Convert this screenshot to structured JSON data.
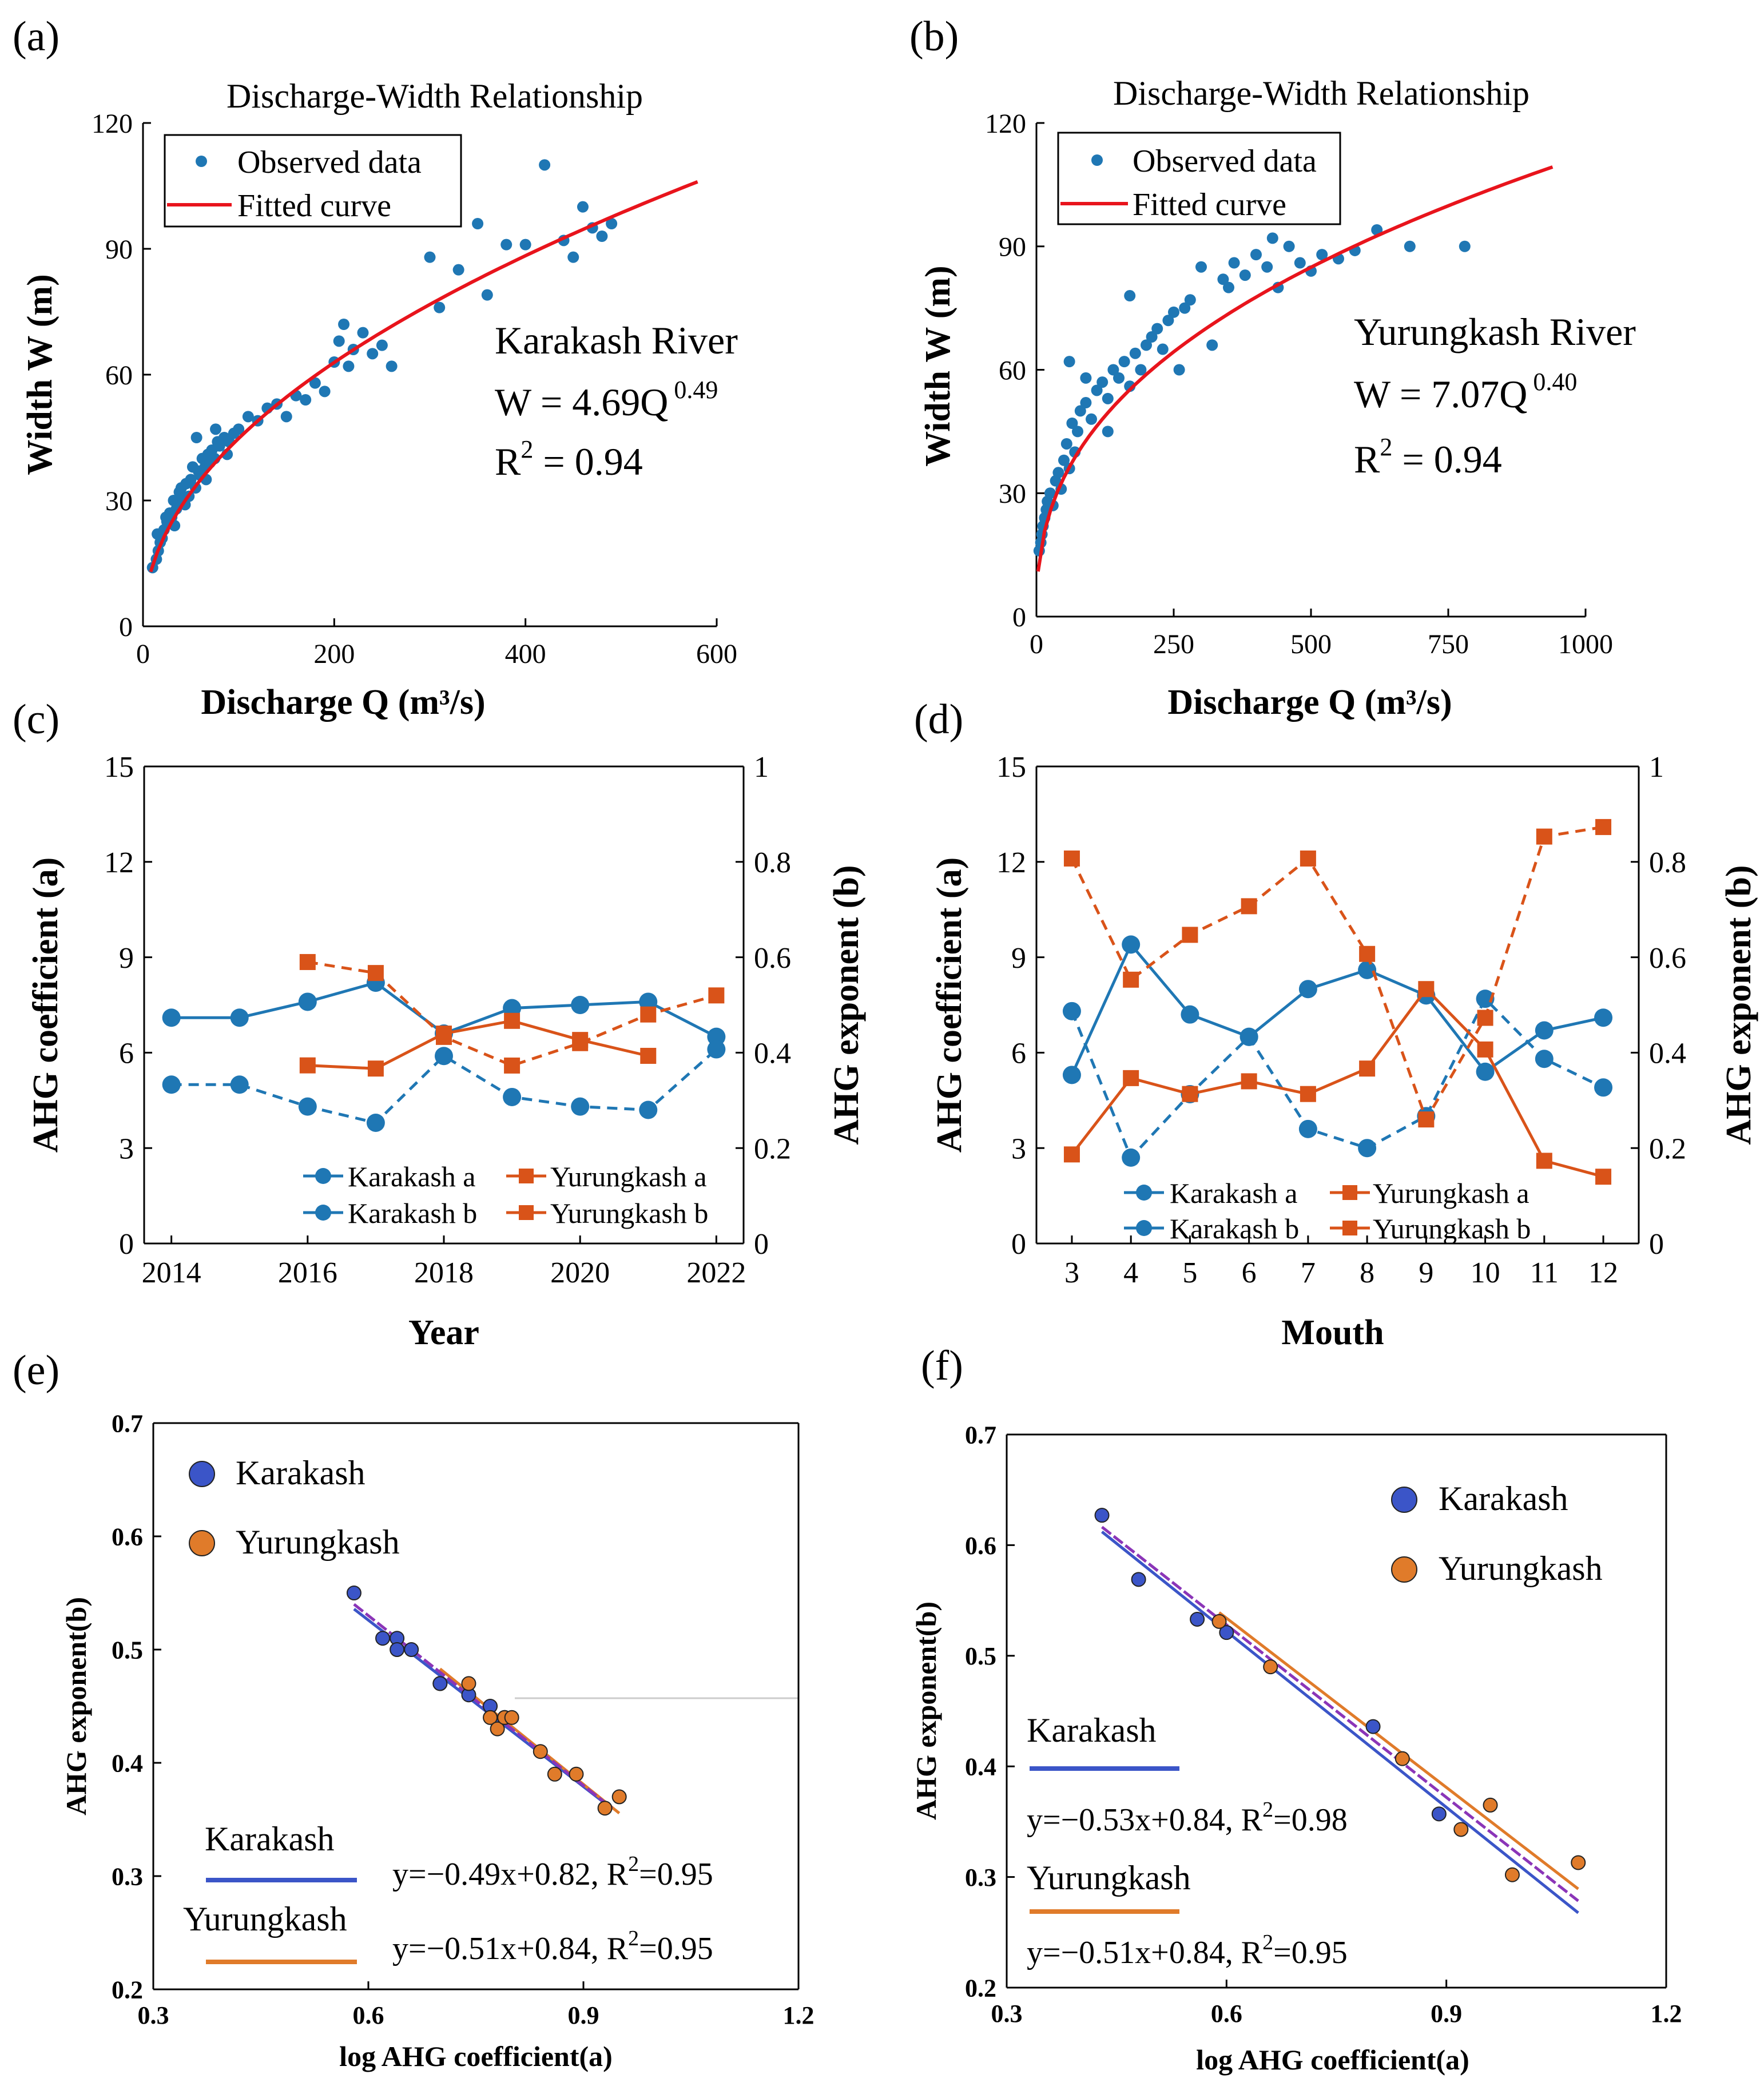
{
  "colors": {
    "kar": "#1f77b4",
    "yur": "#d95319",
    "red": "#e8141c",
    "kar_e": "#3b55c8",
    "yur_e": "#e07b2a",
    "purple": "#8b35b8",
    "axis": "#000000"
  },
  "chart_data": [
    {
      "id": "a",
      "type": "scatter",
      "panel_label": "(a)",
      "title": "Discharge-Width Relationship",
      "xlabel": "Discharge Q (m³/s)",
      "ylabel": "Width W (m)",
      "xlim": [
        0,
        600
      ],
      "ylim": [
        0,
        120
      ],
      "xticks": [
        0,
        200,
        400,
        600
      ],
      "yticks": [
        0,
        30,
        60,
        90,
        120
      ],
      "legend": [
        "Observed data",
        "Fitted curve"
      ],
      "annotations": [
        "Karakash River",
        "W = 4.69Q",
        "0.49",
        "R",
        "2",
        " = 0.94"
      ],
      "fit": {
        "coef": 4.69,
        "exp": 0.49,
        "r2": 0.94,
        "x_range": [
          8,
          580
        ]
      },
      "series": [
        {
          "name": "Observed data",
          "x": [
            10,
            14,
            16,
            18,
            20,
            22,
            25,
            28,
            30,
            32,
            35,
            38,
            40,
            42,
            45,
            48,
            50,
            52,
            55,
            58,
            60,
            62,
            65,
            68,
            70,
            72,
            75,
            78,
            80,
            85,
            90,
            95,
            100,
            110,
            120,
            130,
            140,
            150,
            160,
            170,
            180,
            190,
            200,
            205,
            210,
            215,
            220,
            230,
            240,
            250,
            260,
            300,
            310,
            330,
            350,
            360,
            380,
            400,
            420,
            440,
            450,
            460,
            470,
            480,
            490,
            15,
            24,
            33,
            44,
            56,
            66,
            76,
            88
          ],
          "y": [
            14,
            16,
            18,
            20,
            21,
            23,
            25,
            27,
            26,
            30,
            28,
            32,
            33,
            30,
            34,
            31,
            35,
            38,
            33,
            37,
            36,
            40,
            38,
            41,
            39,
            42,
            40,
            44,
            43,
            45,
            44,
            46,
            47,
            50,
            49,
            52,
            53,
            50,
            55,
            54,
            58,
            56,
            63,
            68,
            72,
            62,
            66,
            70,
            65,
            67,
            62,
            88,
            76,
            85,
            96,
            79,
            91,
            91,
            110,
            92,
            88,
            100,
            95,
            93,
            96,
            22,
            26,
            24,
            29,
            45,
            35,
            47,
            41
          ]
        }
      ]
    },
    {
      "id": "b",
      "type": "scatter",
      "panel_label": "(b)",
      "title": "Discharge-Width Relationship",
      "xlabel": "Discharge Q (m³/s)",
      "ylabel": "Width W (m)",
      "xlim": [
        0,
        1000
      ],
      "ylim": [
        0,
        120
      ],
      "xticks": [
        0,
        250,
        500,
        750,
        1000
      ],
      "yticks": [
        0,
        30,
        60,
        90,
        120
      ],
      "legend": [
        "Observed data",
        "Fitted curve"
      ],
      "annotations": [
        "Yurungkash River",
        "W = 7.07Q",
        "0.40",
        "R",
        "2",
        " = 0.94"
      ],
      "fit": {
        "coef": 7.07,
        "exp": 0.4,
        "r2": 0.94,
        "x_range": [
          3,
          940
        ]
      },
      "series": [
        {
          "name": "Observed data",
          "x": [
            5,
            8,
            10,
            12,
            15,
            18,
            20,
            25,
            30,
            35,
            40,
            45,
            50,
            55,
            60,
            65,
            70,
            75,
            80,
            90,
            100,
            110,
            120,
            130,
            140,
            150,
            160,
            170,
            180,
            190,
            200,
            210,
            220,
            230,
            240,
            250,
            260,
            280,
            300,
            320,
            340,
            360,
            380,
            400,
            420,
            440,
            460,
            480,
            500,
            520,
            550,
            580,
            620,
            680,
            780,
            60,
            90,
            130,
            170,
            270,
            350,
            430
          ],
          "y": [
            16,
            18,
            20,
            22,
            24,
            26,
            28,
            30,
            27,
            33,
            35,
            31,
            38,
            42,
            36,
            47,
            40,
            45,
            50,
            52,
            48,
            55,
            57,
            53,
            60,
            58,
            62,
            56,
            64,
            60,
            66,
            68,
            70,
            65,
            72,
            74,
            60,
            77,
            85,
            66,
            82,
            86,
            83,
            88,
            85,
            80,
            90,
            86,
            84,
            88,
            87,
            89,
            94,
            90,
            90,
            62,
            58,
            45,
            78,
            75,
            80,
            92
          ]
        }
      ]
    },
    {
      "id": "c",
      "type": "line",
      "panel_label": "(c)",
      "xlabel": "Year",
      "ylabel": "AHG coefficient (a)",
      "y2label": "AHG exponent (b)",
      "xlim": [
        2013.6,
        2022.4
      ],
      "ylim": [
        0,
        15
      ],
      "y2lim": [
        0,
        1
      ],
      "xticks": [
        2014,
        2016,
        2018,
        2020,
        2022
      ],
      "yticks": [
        0,
        3,
        6,
        9,
        12,
        15
      ],
      "y2ticks": [
        0,
        0.2,
        0.4,
        0.6,
        0.8,
        1
      ],
      "y2ticklabels": [
        "0",
        "0.2",
        "0.4",
        "0.6",
        "0.8",
        "1"
      ],
      "legend": [
        "Karakash a",
        "Yurungkash a",
        "Karakash b",
        "Yurungkash b"
      ],
      "series": [
        {
          "name": "Karakash a",
          "x": [
            2014,
            2015,
            2016,
            2017,
            2018,
            2019,
            2020,
            2021,
            2022
          ],
          "values": [
            7.1,
            7.1,
            7.6,
            8.2,
            6.6,
            7.4,
            7.5,
            7.6,
            6.5
          ],
          "axis": "left"
        },
        {
          "name": "Karakash b",
          "x": [
            2014,
            2015,
            2016,
            2017,
            2018,
            2019,
            2020,
            2021,
            2022
          ],
          "values": [
            0.333,
            0.333,
            0.287,
            0.253,
            0.393,
            0.307,
            0.287,
            0.28,
            0.407
          ],
          "axis": "right"
        },
        {
          "name": "Yurungkash a",
          "x": [
            2016,
            2017,
            2018,
            2019,
            2020,
            2021
          ],
          "values": [
            5.6,
            5.5,
            6.6,
            7.0,
            6.4,
            5.9
          ],
          "axis": "left"
        },
        {
          "name": "Yurungkash b",
          "x": [
            2016,
            2017,
            2018,
            2019,
            2020,
            2021,
            2022
          ],
          "values": [
            0.59,
            0.567,
            0.433,
            0.373,
            0.42,
            0.48,
            0.52
          ],
          "axis": "right"
        }
      ]
    },
    {
      "id": "d",
      "type": "line",
      "panel_label": "(d)",
      "xlabel": "Mouth",
      "ylabel": "AHG coefficient (a)",
      "y2label": "AHG exponent (b)",
      "xlim": [
        2.4,
        12.6
      ],
      "ylim": [
        0,
        15
      ],
      "y2lim": [
        0,
        1
      ],
      "xticks": [
        3,
        4,
        5,
        6,
        7,
        8,
        9,
        10,
        11,
        12
      ],
      "yticks": [
        0,
        3,
        6,
        9,
        12,
        15
      ],
      "y2ticks": [
        0,
        0.2,
        0.4,
        0.6,
        0.8,
        1
      ],
      "y2ticklabels": [
        "0",
        "0.2",
        "0.4",
        "0.6",
        "0.8",
        "1"
      ],
      "legend": [
        "Karakash a",
        "Yurungkash a",
        "Karakash b",
        "Yurungkash b"
      ],
      "series": [
        {
          "name": "Karakash a",
          "x": [
            3,
            4,
            5,
            6,
            7,
            8,
            9,
            10,
            11,
            12
          ],
          "values": [
            5.3,
            9.4,
            7.2,
            6.5,
            8.0,
            8.6,
            7.8,
            5.4,
            6.7,
            7.1
          ],
          "axis": "left"
        },
        {
          "name": "Karakash b",
          "x": [
            3,
            4,
            5,
            6,
            7,
            8,
            9,
            10,
            11,
            12
          ],
          "values": [
            0.487,
            0.18,
            0.313,
            0.433,
            0.24,
            0.2,
            0.267,
            0.513,
            0.387,
            0.327
          ],
          "axis": "right"
        },
        {
          "name": "Yurungkash a",
          "x": [
            3,
            4,
            5,
            6,
            7,
            8,
            9,
            10,
            11,
            12
          ],
          "values": [
            2.8,
            5.2,
            4.7,
            5.1,
            4.7,
            5.5,
            8.0,
            6.1,
            2.6,
            2.1
          ],
          "axis": "left"
        },
        {
          "name": "Yurungkash b",
          "x": [
            3,
            4,
            5,
            6,
            7,
            8,
            9,
            10,
            11,
            12
          ],
          "values": [
            0.807,
            0.553,
            0.647,
            0.707,
            0.807,
            0.607,
            0.26,
            0.473,
            0.853,
            0.873
          ],
          "axis": "right"
        }
      ]
    },
    {
      "id": "e",
      "type": "scatter",
      "panel_label": "(e)",
      "xlabel": "log AHG coefficient(a)",
      "ylabel": "AHG exponent(b)",
      "xlim": [
        0.3,
        1.2
      ],
      "ylim": [
        0.2,
        0.7
      ],
      "xticks": [
        0.3,
        0.6,
        0.9,
        1.2
      ],
      "yticks": [
        0.2,
        0.3,
        0.4,
        0.5,
        0.6,
        0.7
      ],
      "legend": [
        "Karakash",
        "Yurungkash"
      ],
      "fit_labels": [
        "Karakash",
        "Yurungkash"
      ],
      "equations": [
        "y=−0.49x+0.82, R",
        "2",
        "=0.95",
        "y=−0.51x+0.84, R",
        "2",
        "=0.95"
      ],
      "fits": [
        {
          "name": "Karakash",
          "slope": -0.49,
          "intercept": 0.82,
          "r2": 0.95,
          "x_range": [
            0.58,
            0.94
          ]
        },
        {
          "name": "Yurungkash",
          "slope": -0.51,
          "intercept": 0.84,
          "r2": 0.95,
          "x_range": [
            0.7,
            0.95
          ]
        }
      ],
      "series": [
        {
          "name": "Karakash",
          "x": [
            0.58,
            0.62,
            0.64,
            0.64,
            0.66,
            0.7,
            0.7,
            0.74,
            0.77,
            0.79
          ],
          "y": [
            0.55,
            0.51,
            0.51,
            0.5,
            0.5,
            0.47,
            0.47,
            0.46,
            0.45,
            0.44
          ]
        },
        {
          "name": "Yurungkash",
          "x": [
            0.74,
            0.77,
            0.78,
            0.79,
            0.8,
            0.84,
            0.86,
            0.89,
            0.93,
            0.95
          ],
          "y": [
            0.47,
            0.44,
            0.43,
            0.44,
            0.44,
            0.41,
            0.39,
            0.39,
            0.36,
            0.37
          ]
        }
      ]
    },
    {
      "id": "f",
      "type": "scatter",
      "panel_label": "(f)",
      "xlabel": "log AHG coefficient(a)",
      "ylabel": "AHG exponent(b)",
      "xlim": [
        0.3,
        1.2
      ],
      "ylim": [
        0.2,
        0.7
      ],
      "xticks": [
        0.3,
        0.6,
        0.9,
        1.2
      ],
      "yticks": [
        0.2,
        0.3,
        0.4,
        0.5,
        0.6,
        0.7
      ],
      "legend": [
        "Karakash",
        "Yurungkash"
      ],
      "fit_labels": [
        "Karakash",
        "Yurungkash"
      ],
      "equations": [
        "y=−0.53x+0.84, R",
        "2",
        "=0.98",
        "y=−0.51x+0.84, R",
        "2",
        "=0.95"
      ],
      "fits": [
        {
          "name": "Karakash",
          "slope": -0.53,
          "intercept": 0.84,
          "r2": 0.98,
          "x_range": [
            0.43,
            1.08
          ]
        },
        {
          "name": "Yurungkash",
          "slope": -0.51,
          "intercept": 0.84,
          "r2": 0.95,
          "x_range": [
            0.59,
            1.08
          ]
        }
      ],
      "series": [
        {
          "name": "Karakash",
          "x": [
            0.43,
            0.48,
            0.56,
            0.6,
            0.8,
            0.89
          ],
          "y": [
            0.627,
            0.569,
            0.533,
            0.521,
            0.436,
            0.357
          ]
        },
        {
          "name": "Yurungkash",
          "x": [
            0.59,
            0.66,
            0.84,
            0.92,
            0.96,
            0.99,
            1.08
          ],
          "y": [
            0.531,
            0.49,
            0.407,
            0.343,
            0.365,
            0.302,
            0.313
          ]
        }
      ]
    }
  ]
}
